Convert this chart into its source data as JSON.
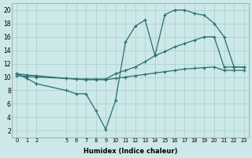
{
  "background_color": "#cce8e8",
  "grid_color": "#aacece",
  "line_color": "#2a6e6e",
  "xlabel": "Humidex (Indice chaleur)",
  "xlim": [
    -0.5,
    23.5
  ],
  "ylim": [
    1,
    21
  ],
  "yticks": [
    2,
    4,
    6,
    8,
    10,
    12,
    14,
    16,
    18,
    20
  ],
  "xticks": [
    0,
    1,
    2,
    5,
    6,
    7,
    8,
    9,
    10,
    11,
    12,
    13,
    14,
    15,
    16,
    17,
    18,
    19,
    20,
    21,
    22,
    23
  ],
  "curve1_x": [
    0,
    1,
    2,
    5,
    6,
    7,
    8,
    9,
    10,
    11,
    12,
    13,
    14,
    15,
    16,
    17,
    18,
    19,
    20,
    21,
    22,
    23
  ],
  "curve1_y": [
    10.5,
    9.8,
    9.0,
    8.0,
    7.5,
    7.5,
    5.0,
    2.2,
    6.5,
    15.2,
    17.6,
    18.5,
    13.2,
    19.3,
    20.0,
    20.0,
    19.5,
    19.2,
    18.0,
    16.0,
    11.5,
    11.5
  ],
  "curve2_x": [
    0,
    1,
    2,
    5,
    6,
    7,
    8,
    9,
    10,
    11,
    12,
    13,
    14,
    15,
    16,
    17,
    18,
    19,
    20,
    21,
    22,
    23
  ],
  "curve2_y": [
    10.5,
    10.3,
    10.2,
    9.8,
    9.7,
    9.7,
    9.7,
    9.7,
    10.5,
    11.0,
    11.5,
    12.3,
    13.2,
    13.8,
    14.5,
    15.0,
    15.5,
    16.0,
    16.0,
    11.5,
    11.5,
    11.5
  ],
  "curve3_x": [
    0,
    1,
    2,
    5,
    6,
    7,
    8,
    9,
    10,
    11,
    12,
    13,
    14,
    15,
    16,
    17,
    18,
    19,
    20,
    21,
    22,
    23
  ],
  "curve3_y": [
    10.2,
    10.1,
    10.0,
    9.8,
    9.7,
    9.6,
    9.6,
    9.6,
    9.8,
    10.0,
    10.2,
    10.4,
    10.6,
    10.8,
    11.0,
    11.2,
    11.3,
    11.4,
    11.5,
    11.0,
    11.0,
    11.0
  ]
}
